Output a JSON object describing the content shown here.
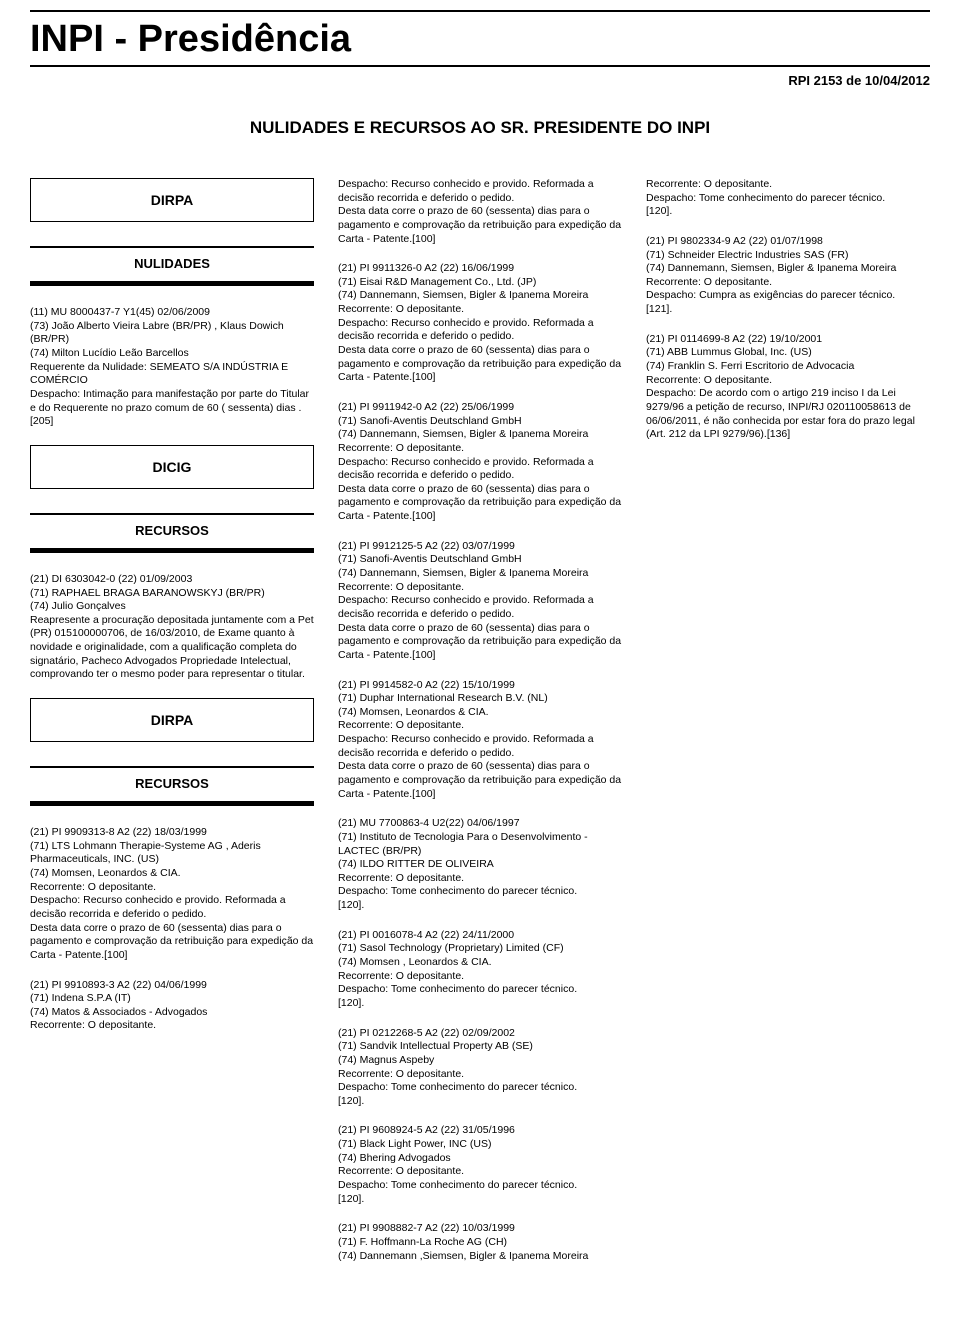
{
  "page": {
    "title": "INPI - Presidência",
    "rpi": "RPI 2153 de 10/04/2012",
    "subtitle": "NULIDADES E RECURSOS AO SR. PRESIDENTE DO INPI"
  },
  "col1": {
    "box_dirpa": "DIRPA",
    "label_nulidades": "NULIDADES",
    "entry1": "(11) MU 8000437-7 Y1(45) 02/06/2009\n(73) João Alberto Vieira Labre (BR/PR) , Klaus Dowich (BR/PR)\n(74) Milton Lucídio Leão Barcellos\nRequerente da Nulidade: SEMEATO S/A INDÚSTRIA E COMÉRCIO\nDespacho: Intimação para manifestação por parte do Titular e do Requerente no prazo comum de 60 ( sessenta) dias .[205]",
    "box_dicig": "DICIG",
    "label_recursos1": "RECURSOS",
    "entry2": "(21) DI 6303042-0      (22) 01/09/2003\n(71) RAPHAEL BRAGA BARANOWSKYJ (BR/PR)\n(74) Julio Gonçalves\nReapresente a procuração depositada juntamente com a Pet (PR) 015100000706, de 16/03/2010, de Exame quanto à novidade e originalidade, com a qualificação completa do signatário, Pacheco Advogados Propriedade Intelectual, comprovando ter o mesmo poder para representar o titular.",
    "box_dirpa2": "DIRPA",
    "label_recursos2": "RECURSOS",
    "entry3": "(21) PI 9909313-8 A2 (22) 18/03/1999\n(71) LTS Lohmann Therapie-Systeme AG , Aderis Pharmaceuticals, INC. (US)\n(74) Momsen, Leonardos & CIA.\nRecorrente: O depositante.\nDespacho: Recurso conhecido e provido. Reformada a decisão recorrida e deferido o pedido.\nDesta data corre o prazo de 60 (sessenta) dias para o pagamento e comprovação da retribuição para expedição da Carta - Patente.[100]",
    "entry4": "(21) PI 9910893-3 A2 (22) 04/06/1999\n(71) Indena S.P.A (IT)\n(74) Matos & Associados - Advogados\nRecorrente: O depositante."
  },
  "col2": {
    "entry1": "Despacho: Recurso conhecido e provido. Reformada a decisão recorrida e deferido o pedido.\nDesta data corre o prazo de 60 (sessenta) dias para o pagamento e comprovação da retribuição para expedição da Carta - Patente.[100]",
    "entry2": "(21) PI 9911326-0 A2 (22) 16/06/1999\n(71) Eisai R&D Management Co., Ltd. (JP)\n(74) Dannemann, Siemsen, Bigler & Ipanema Moreira\nRecorrente: O depositante.\nDespacho: Recurso conhecido e provido. Reformada a decisão recorrida e deferido o pedido.\nDesta data corre o prazo de 60 (sessenta) dias para o pagamento e comprovação da retribuição para expedição da Carta - Patente.[100]",
    "entry3": "(21) PI 9911942-0 A2 (22) 25/06/1999\n(71) Sanofi-Aventis Deutschland GmbH\n(74) Dannemann, Siemsen, Bigler & Ipanema Moreira\nRecorrente: O depositante.\nDespacho: Recurso conhecido e provido. Reformada a decisão recorrida e deferido o pedido.\nDesta data corre o prazo de 60 (sessenta) dias para o pagamento e comprovação da retribuição para expedição da Carta - Patente.[100]",
    "entry4": "(21) PI 9912125-5 A2 (22) 03/07/1999\n(71) Sanofi-Aventis Deutschland GmbH\n(74) Dannemann, Siemsen, Bigler & Ipanema Moreira\nRecorrente: O depositante.\nDespacho: Recurso conhecido e provido. Reformada a decisão recorrida e deferido o pedido.\nDesta data corre o prazo de 60 (sessenta) dias para o pagamento e comprovação da retribuição para expedição da Carta - Patente.[100]",
    "entry5": "(21) PI 9914582-0 A2 (22) 15/10/1999\n(71) Duphar International Research B.V. (NL)\n(74) Momsen, Leonardos & CIA.\nRecorrente: O depositante.\nDespacho: Recurso conhecido e provido. Reformada a decisão recorrida e deferido o pedido.\nDesta data corre o prazo de 60 (sessenta) dias para o pagamento e comprovação da retribuição para expedição da Carta - Patente.[100]",
    "entry6": "(21) MU 7700863-4 U2(22) 04/06/1997\n(71) Instituto de Tecnologia Para o Desenvolvimento - LACTEC (BR/PR)\n(74) ILDO RITTER DE OLIVEIRA\nRecorrente: O depositante.\nDespacho: Tome conhecimento do parecer técnico.\n[120].",
    "entry7": "(21) PI 0016078-4 A2 (22) 24/11/2000\n(71) Sasol Technology (Proprietary) Limited (CF)\n(74) Momsen , Leonardos & CIA.\nRecorrente: O depositante.\nDespacho: Tome conhecimento do parecer técnico.\n[120].",
    "entry8": "(21) PI 0212268-5 A2 (22) 02/09/2002\n(71) Sandvik Intellectual Property AB (SE)\n(74) Magnus Aspeby\nRecorrente: O depositante.\nDespacho: Tome conhecimento do parecer técnico.\n[120].",
    "entry9": "(21) PI 9608924-5 A2 (22) 31/05/1996\n(71) Black Light Power, INC (US)\n(74) Bhering Advogados\nRecorrente: O depositante.\nDespacho: Tome conhecimento do parecer técnico.\n[120].",
    "entry10": "(21) PI 9908882-7 A2 (22) 10/03/1999\n(71) F. Hoffmann-La Roche AG (CH)\n(74) Dannemann ,Siemsen, Bigler & Ipanema Moreira"
  },
  "col3": {
    "entry1": "Recorrente: O depositante.\nDespacho: Tome conhecimento do parecer técnico.\n[120].",
    "entry2": "(21) PI 9802334-9 A2 (22) 01/07/1998\n(71) Schneider Electric Industries SAS (FR)\n(74) Dannemann, Siemsen, Bigler & Ipanema Moreira\nRecorrente: O depositante.\nDespacho: Cumpra as exigências do parecer técnico.\n[121].",
    "entry3": "(21) PI 0114699-8 A2 (22) 19/10/2001\n(71) ABB Lummus Global, Inc. (US)\n(74) Franklin S. Ferri Escritorio de Advocacia\nRecorrente: O depositante.\nDespacho: De acordo com o artigo 219 inciso I da Lei 9279/96 a petição de recurso, INPI/RJ 020110058613 de 06/06/2011, é não conhecida por estar fora do prazo legal (Art. 212 da LPI 9279/96).[136]"
  }
}
